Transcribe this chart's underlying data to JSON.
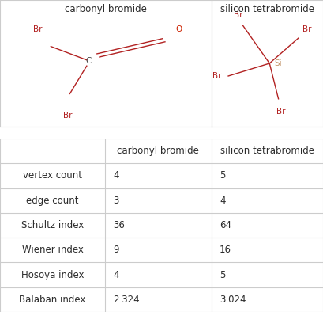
{
  "title1": "carbonyl bromide",
  "title2": "silicon tetrabromide",
  "table_rows": [
    [
      "",
      "carbonyl bromide",
      "silicon tetrabromide"
    ],
    [
      "vertex count",
      "4",
      "5"
    ],
    [
      "edge count",
      "3",
      "4"
    ],
    [
      "Schultz index",
      "36",
      "64"
    ],
    [
      "Wiener index",
      "9",
      "16"
    ],
    [
      "Hosoya index",
      "4",
      "5"
    ],
    [
      "Balaban index",
      "2.324",
      "3.024"
    ]
  ],
  "br_color": "#B22222",
  "o_color": "#CC2200",
  "c_color": "#444444",
  "si_color": "#C4956A",
  "bond_color": "#B22222",
  "grid_color": "#CCCCCC",
  "bg_color": "#FFFFFF",
  "text_color": "#2B2B2B",
  "font_size": 8.5,
  "header_font_size": 8.5,
  "mol_font_size": 7.5
}
